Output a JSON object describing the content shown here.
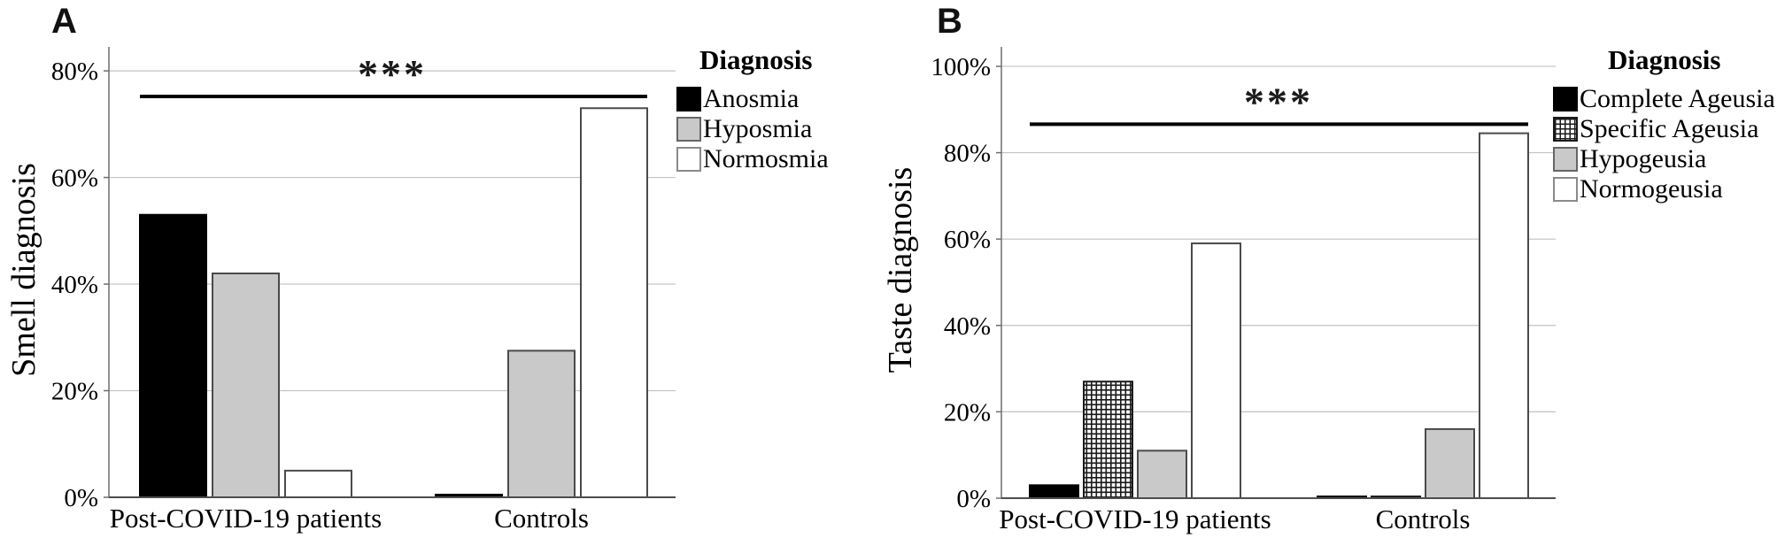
{
  "figure": {
    "panels": [
      {
        "letter": "A",
        "y_axis_title": "Smell diagnosis",
        "legend": {
          "title": "Diagnosis",
          "items": [
            {
              "label": "Anosmia",
              "style": "black"
            },
            {
              "label": "Hyposmia",
              "style": "gray"
            },
            {
              "label": "Normosmia",
              "style": "white"
            }
          ]
        }
      },
      {
        "letter": "B",
        "y_axis_title": "Taste diagnosis",
        "legend": {
          "title": "Diagnosis",
          "items": [
            {
              "label": "Complete Ageusia",
              "style": "black"
            },
            {
              "label": "Specific Ageusia",
              "style": "crosshatch"
            },
            {
              "label": "Hypogeusia",
              "style": "gray"
            },
            {
              "label": "Normogeusia",
              "style": "white"
            }
          ]
        }
      }
    ]
  },
  "chart_data": [
    {
      "type": "bar",
      "panel": "A",
      "ylabel": "Smell diagnosis",
      "categories": [
        "Post-COVID-19 patients",
        "Controls"
      ],
      "series": [
        {
          "name": "Anosmia",
          "pattern": "black",
          "values": [
            53,
            0.5
          ]
        },
        {
          "name": "Hyposmia",
          "pattern": "gray",
          "values": [
            42,
            27.5
          ]
        },
        {
          "name": "Normosmia",
          "pattern": "white",
          "values": [
            5,
            73
          ]
        }
      ],
      "ylim": [
        0,
        84.5
      ],
      "ytick_values": [
        0,
        20,
        40,
        60,
        80
      ],
      "yticks": [
        "0%",
        "20%",
        "40%",
        "60%",
        "80%"
      ],
      "grid": true,
      "legend_title": "Diagnosis",
      "legend_position": "top-right",
      "annotation": {
        "text": "***",
        "line_y": 75.2
      }
    },
    {
      "type": "bar",
      "panel": "B",
      "ylabel": "Taste diagnosis",
      "categories": [
        "Post-COVID-19 patients",
        "Controls"
      ],
      "series": [
        {
          "name": "Complete Ageusia",
          "pattern": "black",
          "values": [
            3,
            0.4
          ]
        },
        {
          "name": "Specific Ageusia",
          "pattern": "crosshatch",
          "values": [
            27,
            0.4
          ]
        },
        {
          "name": "Hypogeusia",
          "pattern": "gray",
          "values": [
            11,
            16
          ]
        },
        {
          "name": "Normogeusia",
          "pattern": "white",
          "values": [
            59,
            84.5
          ]
        }
      ],
      "ylim": [
        0,
        104.5
      ],
      "ytick_values": [
        0,
        20,
        40,
        60,
        80,
        100
      ],
      "yticks": [
        "0%",
        "20%",
        "40%",
        "60%",
        "80%",
        "100%"
      ],
      "grid": true,
      "legend_title": "Diagnosis",
      "legend_position": "top-right",
      "annotation": {
        "text": "***",
        "line_y": 86.6
      }
    }
  ]
}
